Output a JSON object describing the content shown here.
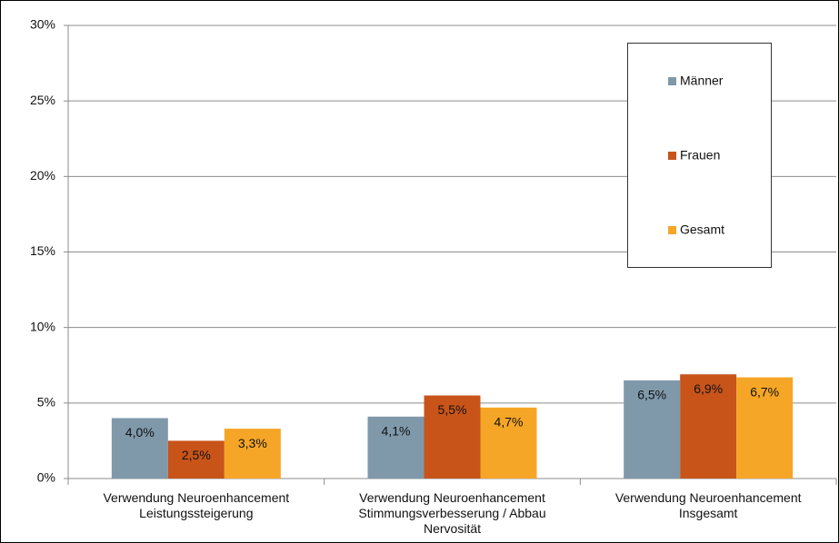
{
  "chart_data": {
    "type": "bar",
    "categories": [
      "Verwendung Neuroenhancement\nLeistungssteigerung",
      "Verwendung Neuroenhancement\nStimmungsverbesserung / Abbau\nNervosität",
      "Verwendung Neuroenhancement\nInsgesamt"
    ],
    "series": [
      {
        "name": "Männer",
        "color": "#7f99ab",
        "values": [
          4.0,
          4.1,
          6.5
        ],
        "value_labels": [
          "4,0%",
          "4,1%",
          "6,5%"
        ]
      },
      {
        "name": "Frauen",
        "color": "#c8541a",
        "values": [
          2.5,
          5.5,
          6.9
        ],
        "value_labels": [
          "2,5%",
          "5,5%",
          "6,9%"
        ]
      },
      {
        "name": "Gesamt",
        "color": "#f5a627",
        "values": [
          3.3,
          4.7,
          6.7
        ],
        "value_labels": [
          "3,3%",
          "4,7%",
          "6,7%"
        ]
      }
    ],
    "ylim": [
      0,
      30
    ],
    "yticks": [
      {
        "value": 0,
        "label": "0%"
      },
      {
        "value": 5,
        "label": "5%"
      },
      {
        "value": 10,
        "label": "10%"
      },
      {
        "value": 15,
        "label": "15%"
      },
      {
        "value": 20,
        "label": "20%"
      },
      {
        "value": 25,
        "label": "25%"
      },
      {
        "value": 30,
        "label": "30%"
      }
    ],
    "grid": true,
    "legend": "upper right"
  }
}
